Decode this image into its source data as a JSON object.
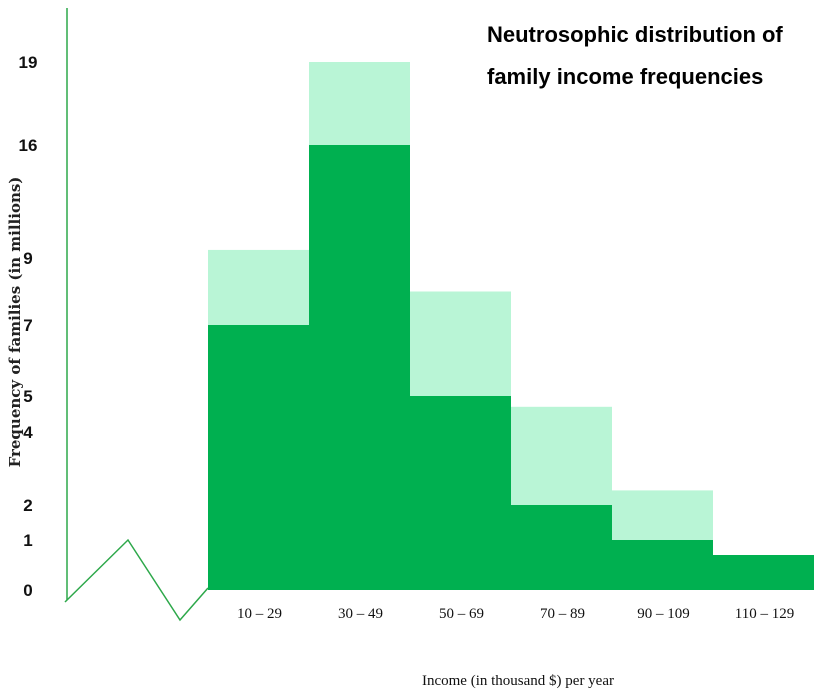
{
  "chart_data": {
    "type": "bar",
    "title_lines": [
      "Neutrosophic distribution of",
      "family income frequencies"
    ],
    "xlabel": "Income (in thousand $) per year",
    "ylabel": "Frequency of families (in millions)",
    "categories": [
      "10 – 29",
      "30 – 49",
      "50 – 69",
      "70 – 89",
      "90 – 109",
      "110 – 129"
    ],
    "series": [
      {
        "values": [
          7.0,
          16,
          5,
          2,
          1,
          0.7
        ]
      },
      {
        "values": [
          9.5,
          19,
          8,
          4.7,
          2.4,
          0.7
        ]
      }
    ],
    "yticks": [
      0,
      1,
      2,
      4,
      5,
      7,
      9,
      16,
      19
    ],
    "ylim": [
      0,
      20
    ],
    "grid": false,
    "colors": {
      "lower": "#00b050",
      "upper": "#b9f5d6",
      "axis": "#2da84a"
    }
  }
}
